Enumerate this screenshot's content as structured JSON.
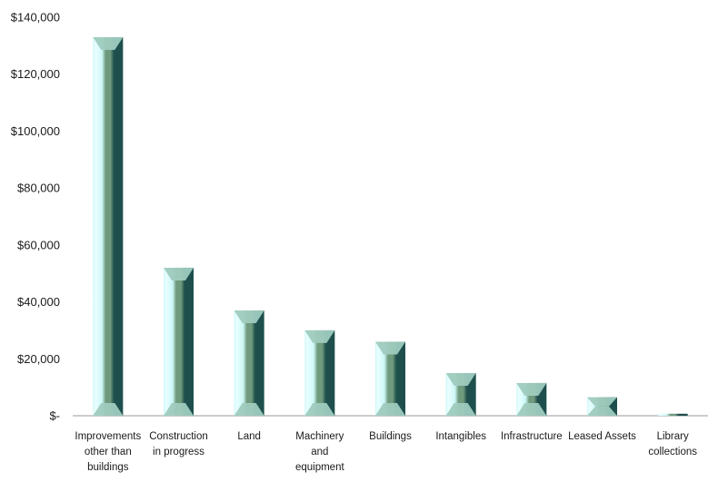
{
  "chart_data": {
    "type": "bar",
    "categories": [
      [
        "Improvements",
        "other than",
        "buildings"
      ],
      [
        "Construction",
        "in progress"
      ],
      [
        "Land"
      ],
      [
        "Machinery",
        "and",
        "equipment"
      ],
      [
        "Buildings"
      ],
      [
        "Intangibles"
      ],
      [
        "Infrastructure"
      ],
      [
        "Leased Assets"
      ],
      [
        "Library",
        "collections"
      ]
    ],
    "values": [
      133000,
      52000,
      37000,
      30000,
      26000,
      15000,
      11500,
      6500,
      700
    ],
    "y_ticks": [
      0,
      20000,
      40000,
      60000,
      80000,
      100000,
      120000,
      140000
    ],
    "y_tick_labels": [
      "$-",
      "$20,000",
      "$40,000",
      "$60,000",
      "$80,000",
      "$100,000",
      "$120,000",
      "$140,000"
    ],
    "ylim": [
      0,
      140000
    ],
    "grid": false,
    "legend": "none",
    "colors": {
      "light": "#cdf7f7",
      "highlight": "#e9ffff",
      "center": "#6f9a7d",
      "dark": "#1e4f4c",
      "cap": "#9fcbbf",
      "axis": "#9a9a9a"
    }
  }
}
